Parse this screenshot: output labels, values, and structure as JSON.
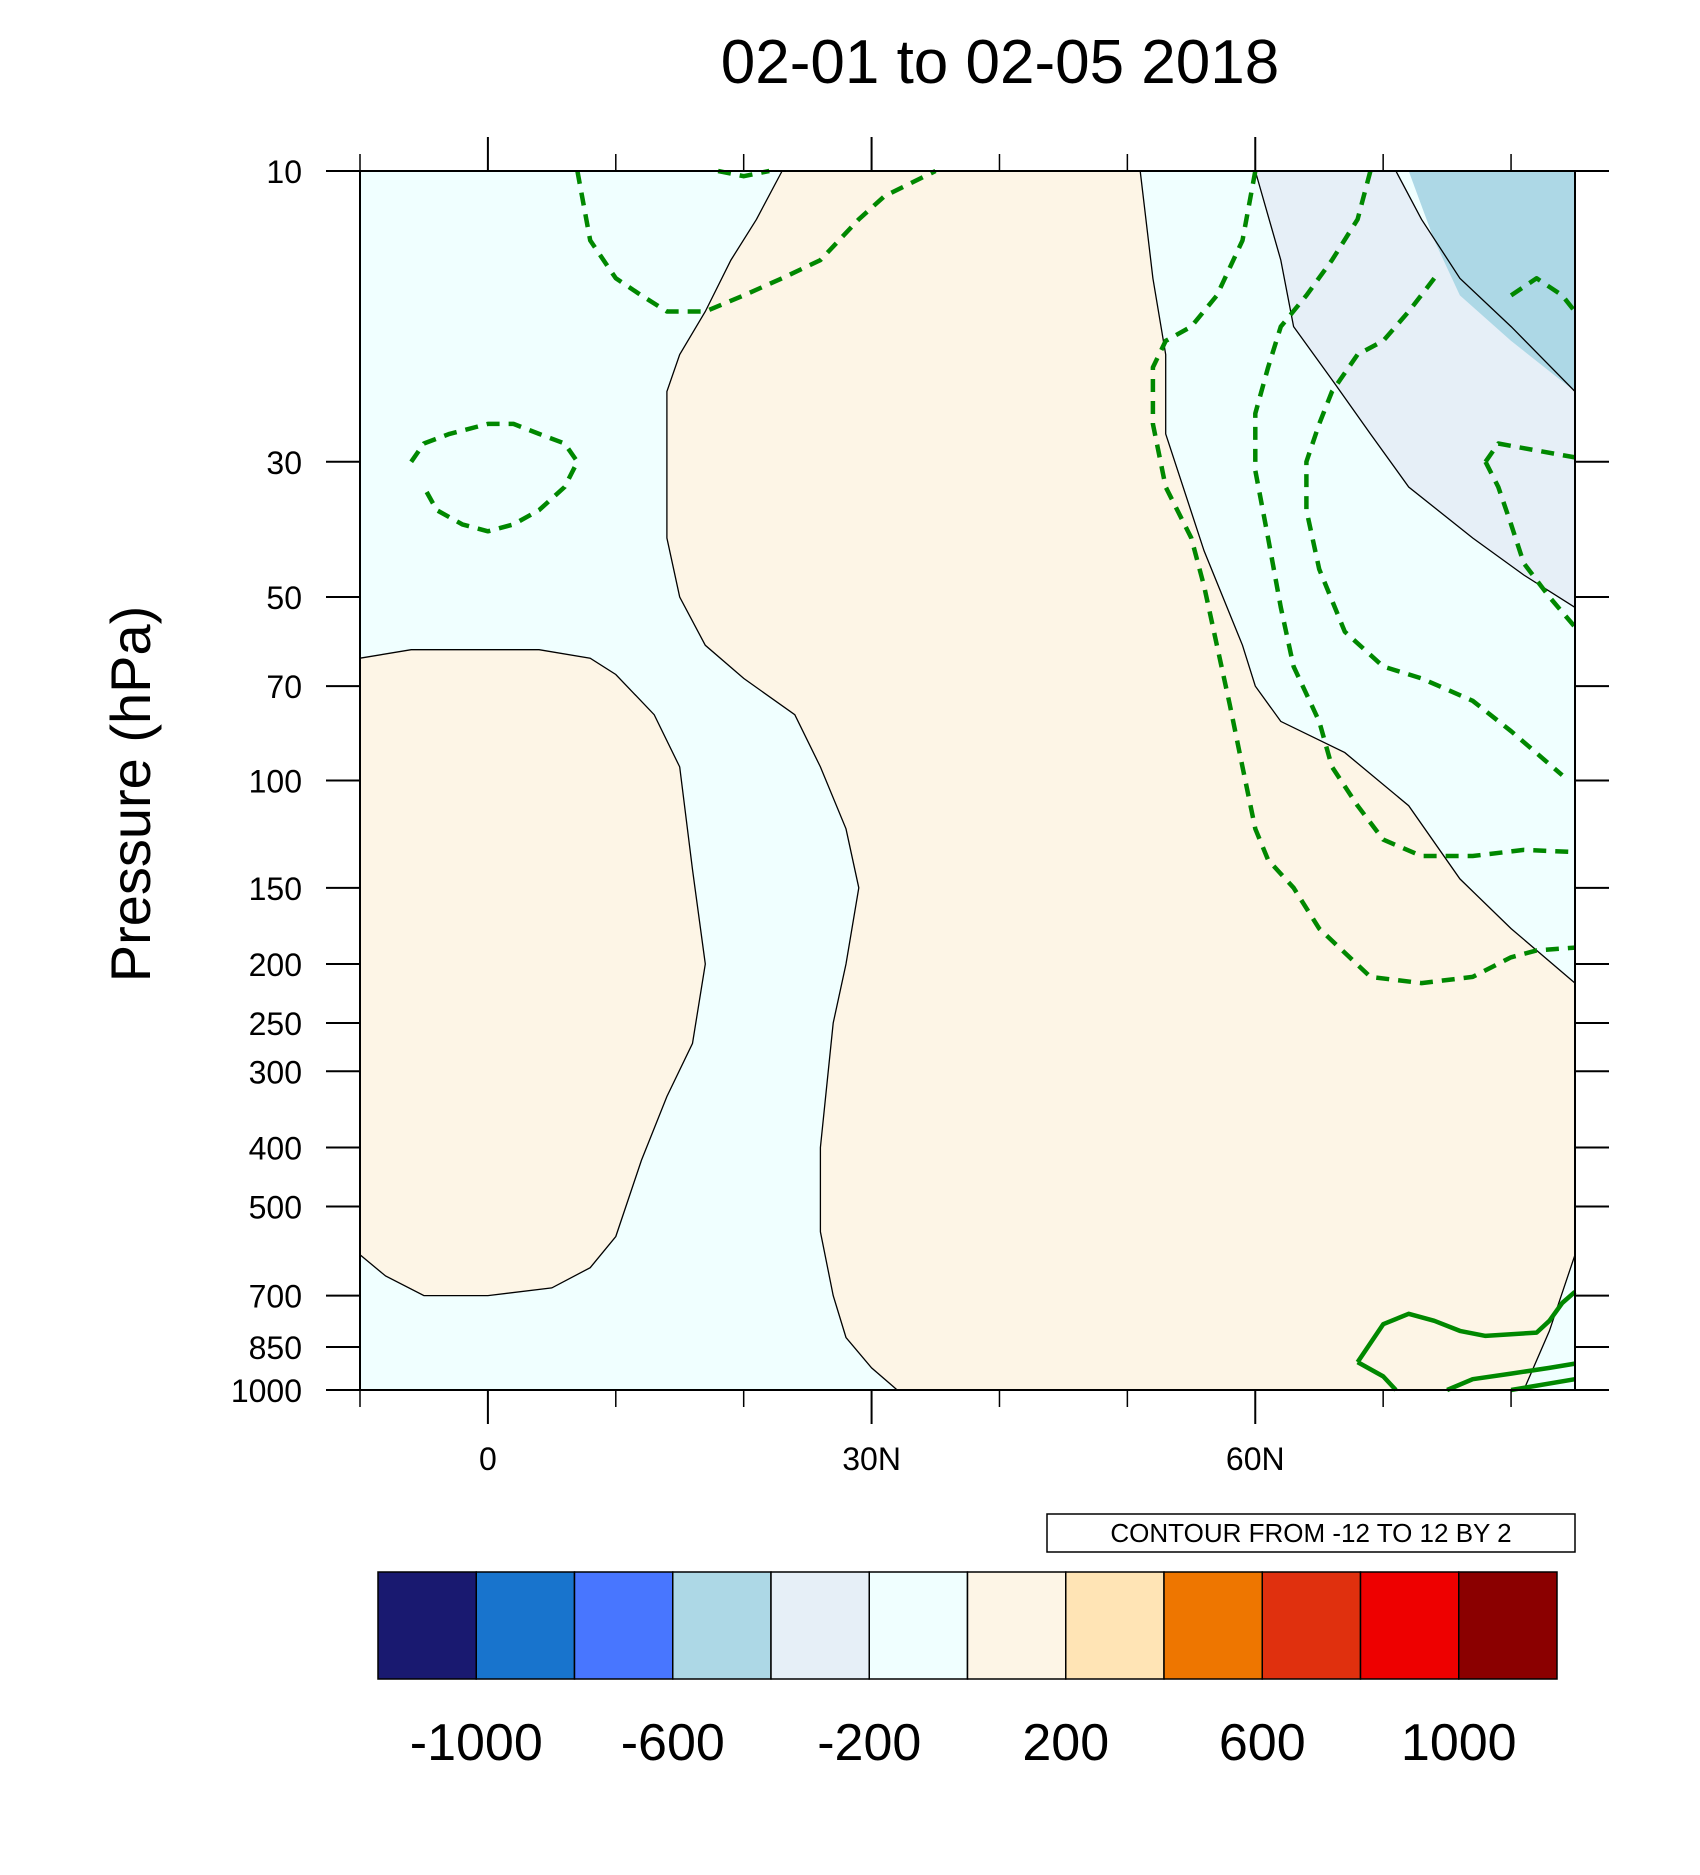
{
  "chart_data": {
    "type": "contour",
    "title": "02-01 to 02-05 2018",
    "ylabel": "Pressure (hPa)",
    "xlabel": "",
    "x_ticks": [
      {
        "value": 0,
        "label": "0"
      },
      {
        "value": 30,
        "label": "30N"
      },
      {
        "value": 60,
        "label": "60N"
      }
    ],
    "x_minor_ticks": [
      -10,
      10,
      20,
      40,
      50,
      70,
      80
    ],
    "xlim": [
      -10,
      85
    ],
    "y_scale": "log",
    "y_ticks": [
      {
        "value": 10,
        "label": "10"
      },
      {
        "value": 30,
        "label": "30"
      },
      {
        "value": 50,
        "label": "50"
      },
      {
        "value": 70,
        "label": "70"
      },
      {
        "value": 100,
        "label": "100"
      },
      {
        "value": 150,
        "label": "150"
      },
      {
        "value": 200,
        "label": "200"
      },
      {
        "value": 250,
        "label": "250"
      },
      {
        "value": 300,
        "label": "300"
      },
      {
        "value": 400,
        "label": "400"
      },
      {
        "value": 500,
        "label": "500"
      },
      {
        "value": 700,
        "label": "700"
      },
      {
        "value": 850,
        "label": "850"
      },
      {
        "value": 1000,
        "label": "1000"
      }
    ],
    "ylim": [
      1000,
      10
    ],
    "contour_note": "CONTOUR FROM -12 TO 12 BY 2",
    "colorbar": {
      "colors": [
        "#191970",
        "#1874CD",
        "#4876FF",
        "#ADD8E6",
        "#E6EFF7",
        "#F0FFFF",
        "#FDF5E6",
        "#FFE4B5",
        "#EE7600",
        "#E0300E",
        "#EE0000",
        "#8B0000"
      ],
      "labels": [
        "-1000",
        "-600",
        "-200",
        "200",
        "600",
        "1000"
      ],
      "label_positions": [
        1,
        3,
        5,
        7,
        9,
        11
      ]
    },
    "fill_colors": {
      "neg_0_200": "#F0FFFF",
      "pos_0_200": "#FDF5E6",
      "neg_200_400": "#E6EFF7",
      "neg_400_600": "#ADD8E6"
    },
    "contour_color": "#008800",
    "filled_regions": [
      {
        "level": "pos_0_200",
        "points": [
          [
            -10,
            63
          ],
          [
            -6,
            61
          ],
          [
            0,
            61
          ],
          [
            4,
            61
          ],
          [
            8,
            63
          ],
          [
            10,
            67
          ],
          [
            13,
            78
          ],
          [
            15,
            95
          ],
          [
            16,
            140
          ],
          [
            17,
            200
          ],
          [
            16,
            270
          ],
          [
            14,
            330
          ],
          [
            12,
            420
          ],
          [
            10,
            560
          ],
          [
            8,
            630
          ],
          [
            5,
            680
          ],
          [
            0,
            700
          ],
          [
            -5,
            700
          ],
          [
            -8,
            650
          ],
          [
            -10,
            600
          ]
        ]
      },
      {
        "level": "pos_0_200",
        "points": [
          [
            23,
            10
          ],
          [
            51,
            10
          ],
          [
            52,
            15
          ],
          [
            53,
            20
          ],
          [
            53,
            27
          ],
          [
            56,
            42
          ],
          [
            59,
            60
          ],
          [
            60,
            70
          ],
          [
            62,
            80
          ],
          [
            67,
            90
          ],
          [
            72,
            110
          ],
          [
            76,
            145
          ],
          [
            80,
            175
          ],
          [
            85,
            215
          ],
          [
            85,
            600
          ],
          [
            83,
            800
          ],
          [
            81,
            1000
          ],
          [
            32,
            1000
          ],
          [
            30,
            920
          ],
          [
            28,
            820
          ],
          [
            27,
            700
          ],
          [
            26,
            550
          ],
          [
            26,
            400
          ],
          [
            27,
            250
          ],
          [
            28,
            200
          ],
          [
            29,
            150
          ],
          [
            28,
            120
          ],
          [
            26,
            95
          ],
          [
            24,
            78
          ],
          [
            20,
            68
          ],
          [
            17,
            60
          ],
          [
            15,
            50
          ],
          [
            14,
            40
          ],
          [
            14,
            30
          ],
          [
            14,
            23
          ],
          [
            15,
            20
          ],
          [
            17,
            17
          ],
          [
            19,
            14
          ],
          [
            21,
            12
          ]
        ]
      },
      {
        "level": "neg_200_400",
        "points": [
          [
            60,
            10
          ],
          [
            71,
            10
          ],
          [
            73,
            12
          ],
          [
            76,
            15
          ],
          [
            80,
            18
          ],
          [
            85,
            23
          ],
          [
            85,
            52
          ],
          [
            81,
            46
          ],
          [
            77,
            40
          ],
          [
            72,
            33
          ],
          [
            69,
            27
          ],
          [
            66,
            22
          ],
          [
            63,
            18
          ],
          [
            62,
            14
          ]
        ]
      },
      {
        "level": "neg_400_600",
        "points": [
          [
            72,
            10
          ],
          [
            85,
            10
          ],
          [
            85,
            23
          ],
          [
            80,
            19
          ],
          [
            76,
            16
          ],
          [
            74,
            13
          ]
        ]
      }
    ],
    "boundary_lines": [
      [
        [
          -10,
          63
        ],
        [
          -6,
          61
        ],
        [
          0,
          61
        ],
        [
          4,
          61
        ],
        [
          8,
          63
        ],
        [
          10,
          67
        ],
        [
          13,
          78
        ],
        [
          15,
          95
        ],
        [
          16,
          140
        ],
        [
          17,
          200
        ],
        [
          16,
          270
        ],
        [
          14,
          330
        ],
        [
          12,
          420
        ],
        [
          10,
          560
        ],
        [
          8,
          630
        ],
        [
          5,
          680
        ],
        [
          0,
          700
        ],
        [
          -5,
          700
        ],
        [
          -8,
          650
        ],
        [
          -10,
          600
        ]
      ],
      [
        [
          23,
          10
        ],
        [
          21,
          12
        ],
        [
          19,
          14
        ],
        [
          17,
          17
        ],
        [
          15,
          20
        ],
        [
          14,
          23
        ],
        [
          14,
          30
        ],
        [
          14,
          40
        ],
        [
          15,
          50
        ],
        [
          17,
          60
        ],
        [
          20,
          68
        ],
        [
          24,
          78
        ],
        [
          26,
          95
        ],
        [
          28,
          120
        ],
        [
          29,
          150
        ],
        [
          28,
          200
        ],
        [
          27,
          250
        ],
        [
          26,
          400
        ],
        [
          26,
          550
        ],
        [
          27,
          700
        ],
        [
          28,
          820
        ],
        [
          30,
          920
        ],
        [
          32,
          1000
        ]
      ],
      [
        [
          51,
          10
        ],
        [
          52,
          15
        ],
        [
          53,
          20
        ],
        [
          53,
          27
        ],
        [
          56,
          42
        ],
        [
          59,
          60
        ],
        [
          60,
          70
        ],
        [
          62,
          80
        ],
        [
          67,
          90
        ],
        [
          72,
          110
        ],
        [
          76,
          145
        ],
        [
          80,
          175
        ],
        [
          85,
          215
        ]
      ],
      [
        [
          60,
          10
        ],
        [
          62,
          14
        ],
        [
          63,
          18
        ],
        [
          66,
          22
        ],
        [
          69,
          27
        ],
        [
          72,
          33
        ],
        [
          77,
          40
        ],
        [
          81,
          46
        ],
        [
          85,
          52
        ]
      ],
      [
        [
          71,
          10
        ],
        [
          73,
          12
        ],
        [
          76,
          15
        ],
        [
          80,
          18
        ],
        [
          85,
          23
        ]
      ],
      [
        [
          85,
          600
        ],
        [
          83,
          800
        ],
        [
          81,
          1000
        ]
      ]
    ],
    "dashed_contours": [
      [
        [
          7,
          10
        ],
        [
          8,
          13
        ],
        [
          10,
          15
        ],
        [
          12,
          16
        ],
        [
          14,
          17
        ],
        [
          17,
          17
        ],
        [
          20,
          16
        ],
        [
          23,
          15
        ],
        [
          26,
          14
        ],
        [
          29,
          12
        ],
        [
          31,
          11
        ],
        [
          35,
          10
        ]
      ],
      [
        [
          18,
          10
        ],
        [
          20,
          10.2
        ],
        [
          22,
          10
        ]
      ],
      [
        [
          -6,
          30
        ],
        [
          -5,
          28
        ],
        [
          -3,
          27
        ],
        [
          0,
          26
        ],
        [
          2,
          26
        ],
        [
          4,
          27
        ],
        [
          6,
          28
        ],
        [
          7,
          30
        ],
        [
          6,
          33
        ],
        [
          4,
          36
        ],
        [
          2,
          38
        ],
        [
          0,
          39
        ],
        [
          -2,
          38
        ],
        [
          -4,
          36
        ],
        [
          -5,
          33
        ]
      ],
      [
        [
          60,
          10
        ],
        [
          59,
          13
        ],
        [
          57,
          16
        ],
        [
          55,
          18
        ],
        [
          53,
          19
        ],
        [
          52,
          21
        ],
        [
          52,
          26
        ],
        [
          53,
          33
        ],
        [
          55,
          40
        ],
        [
          56,
          48
        ],
        [
          57,
          60
        ],
        [
          58,
          75
        ],
        [
          59,
          95
        ],
        [
          60,
          120
        ],
        [
          61,
          135
        ],
        [
          63,
          150
        ],
        [
          65,
          175
        ],
        [
          69,
          210
        ],
        [
          73,
          215
        ],
        [
          77,
          210
        ],
        [
          80,
          195
        ],
        [
          82,
          190
        ],
        [
          85,
          188
        ]
      ],
      [
        [
          69,
          10
        ],
        [
          68,
          12
        ],
        [
          66,
          14
        ],
        [
          64,
          16
        ],
        [
          62,
          18
        ],
        [
          61,
          21
        ],
        [
          60,
          25
        ],
        [
          60,
          31
        ],
        [
          61,
          40
        ],
        [
          62,
          52
        ],
        [
          63,
          65
        ],
        [
          65,
          80
        ],
        [
          66,
          95
        ],
        [
          68,
          110
        ],
        [
          70,
          125
        ],
        [
          73,
          133
        ],
        [
          77,
          133
        ],
        [
          81,
          130
        ],
        [
          85,
          131
        ]
      ],
      [
        [
          74,
          15
        ],
        [
          72,
          17
        ],
        [
          70,
          19
        ],
        [
          68,
          20
        ],
        [
          66,
          23
        ],
        [
          65,
          26
        ],
        [
          64,
          30
        ],
        [
          64,
          36
        ],
        [
          65,
          45
        ],
        [
          67,
          57
        ],
        [
          70,
          65
        ],
        [
          73,
          68
        ],
        [
          77,
          74
        ],
        [
          80,
          83
        ],
        [
          84,
          98
        ]
      ],
      [
        [
          80,
          16
        ],
        [
          82,
          15
        ],
        [
          84,
          16
        ],
        [
          85,
          17
        ]
      ],
      [
        [
          78,
          30
        ],
        [
          79,
          28
        ],
        [
          81,
          28.5
        ],
        [
          85,
          29.5
        ]
      ],
      [
        [
          78,
          30
        ],
        [
          79,
          33
        ],
        [
          80,
          38
        ],
        [
          81,
          44
        ],
        [
          83,
          50
        ],
        [
          85,
          56
        ]
      ]
    ],
    "solid_contours": [
      [
        [
          68,
          900
        ],
        [
          70,
          780
        ],
        [
          72,
          750
        ],
        [
          74,
          770
        ],
        [
          76,
          800
        ],
        [
          78,
          815
        ],
        [
          80,
          810
        ],
        [
          82,
          805
        ],
        [
          83,
          770
        ],
        [
          84,
          720
        ],
        [
          85,
          690
        ]
      ],
      [
        [
          68,
          900
        ],
        [
          70,
          950
        ],
        [
          71,
          1000
        ]
      ],
      [
        [
          75,
          1000
        ],
        [
          77,
          960
        ],
        [
          80,
          940
        ],
        [
          83,
          920
        ],
        [
          85,
          905
        ]
      ],
      [
        [
          80,
          1000
        ],
        [
          85,
          960
        ]
      ]
    ]
  }
}
